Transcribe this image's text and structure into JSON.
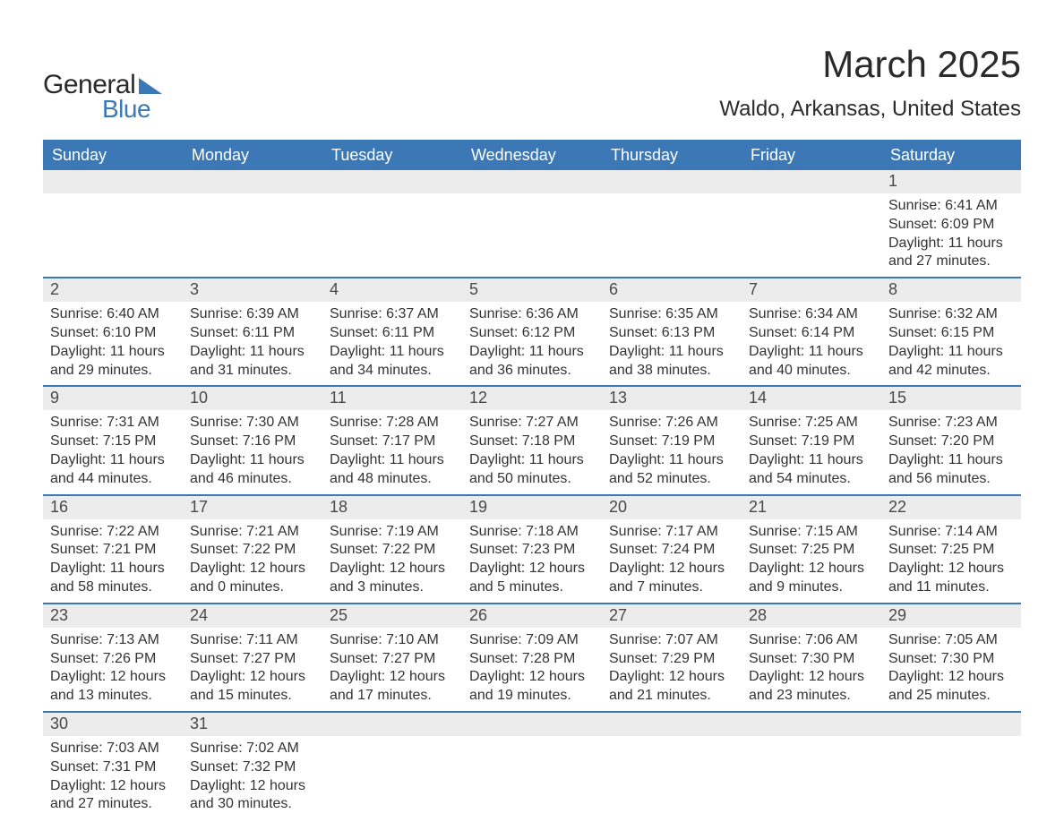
{
  "logo": {
    "text1": "General",
    "text2": "Blue",
    "accent_color": "#3b78b5"
  },
  "title": "March 2025",
  "location": "Waldo, Arkansas, United States",
  "day_headers": [
    "Sunday",
    "Monday",
    "Tuesday",
    "Wednesday",
    "Thursday",
    "Friday",
    "Saturday"
  ],
  "header_bg": "#3b78b5",
  "header_fg": "#ffffff",
  "daynum_bg": "#ececec",
  "row_border": "#3b78b5",
  "text_color": "#333333",
  "body_fontsize": 16,
  "leading_blanks": 6,
  "days": [
    {
      "n": 1,
      "sunrise": "6:41 AM",
      "sunset": "6:09 PM",
      "dl_h": 11,
      "dl_m": 27
    },
    {
      "n": 2,
      "sunrise": "6:40 AM",
      "sunset": "6:10 PM",
      "dl_h": 11,
      "dl_m": 29
    },
    {
      "n": 3,
      "sunrise": "6:39 AM",
      "sunset": "6:11 PM",
      "dl_h": 11,
      "dl_m": 31
    },
    {
      "n": 4,
      "sunrise": "6:37 AM",
      "sunset": "6:11 PM",
      "dl_h": 11,
      "dl_m": 34
    },
    {
      "n": 5,
      "sunrise": "6:36 AM",
      "sunset": "6:12 PM",
      "dl_h": 11,
      "dl_m": 36
    },
    {
      "n": 6,
      "sunrise": "6:35 AM",
      "sunset": "6:13 PM",
      "dl_h": 11,
      "dl_m": 38
    },
    {
      "n": 7,
      "sunrise": "6:34 AM",
      "sunset": "6:14 PM",
      "dl_h": 11,
      "dl_m": 40
    },
    {
      "n": 8,
      "sunrise": "6:32 AM",
      "sunset": "6:15 PM",
      "dl_h": 11,
      "dl_m": 42
    },
    {
      "n": 9,
      "sunrise": "7:31 AM",
      "sunset": "7:15 PM",
      "dl_h": 11,
      "dl_m": 44
    },
    {
      "n": 10,
      "sunrise": "7:30 AM",
      "sunset": "7:16 PM",
      "dl_h": 11,
      "dl_m": 46
    },
    {
      "n": 11,
      "sunrise": "7:28 AM",
      "sunset": "7:17 PM",
      "dl_h": 11,
      "dl_m": 48
    },
    {
      "n": 12,
      "sunrise": "7:27 AM",
      "sunset": "7:18 PM",
      "dl_h": 11,
      "dl_m": 50
    },
    {
      "n": 13,
      "sunrise": "7:26 AM",
      "sunset": "7:19 PM",
      "dl_h": 11,
      "dl_m": 52
    },
    {
      "n": 14,
      "sunrise": "7:25 AM",
      "sunset": "7:19 PM",
      "dl_h": 11,
      "dl_m": 54
    },
    {
      "n": 15,
      "sunrise": "7:23 AM",
      "sunset": "7:20 PM",
      "dl_h": 11,
      "dl_m": 56
    },
    {
      "n": 16,
      "sunrise": "7:22 AM",
      "sunset": "7:21 PM",
      "dl_h": 11,
      "dl_m": 58
    },
    {
      "n": 17,
      "sunrise": "7:21 AM",
      "sunset": "7:22 PM",
      "dl_h": 12,
      "dl_m": 0
    },
    {
      "n": 18,
      "sunrise": "7:19 AM",
      "sunset": "7:22 PM",
      "dl_h": 12,
      "dl_m": 3
    },
    {
      "n": 19,
      "sunrise": "7:18 AM",
      "sunset": "7:23 PM",
      "dl_h": 12,
      "dl_m": 5
    },
    {
      "n": 20,
      "sunrise": "7:17 AM",
      "sunset": "7:24 PM",
      "dl_h": 12,
      "dl_m": 7
    },
    {
      "n": 21,
      "sunrise": "7:15 AM",
      "sunset": "7:25 PM",
      "dl_h": 12,
      "dl_m": 9
    },
    {
      "n": 22,
      "sunrise": "7:14 AM",
      "sunset": "7:25 PM",
      "dl_h": 12,
      "dl_m": 11
    },
    {
      "n": 23,
      "sunrise": "7:13 AM",
      "sunset": "7:26 PM",
      "dl_h": 12,
      "dl_m": 13
    },
    {
      "n": 24,
      "sunrise": "7:11 AM",
      "sunset": "7:27 PM",
      "dl_h": 12,
      "dl_m": 15
    },
    {
      "n": 25,
      "sunrise": "7:10 AM",
      "sunset": "7:27 PM",
      "dl_h": 12,
      "dl_m": 17
    },
    {
      "n": 26,
      "sunrise": "7:09 AM",
      "sunset": "7:28 PM",
      "dl_h": 12,
      "dl_m": 19
    },
    {
      "n": 27,
      "sunrise": "7:07 AM",
      "sunset": "7:29 PM",
      "dl_h": 12,
      "dl_m": 21
    },
    {
      "n": 28,
      "sunrise": "7:06 AM",
      "sunset": "7:30 PM",
      "dl_h": 12,
      "dl_m": 23
    },
    {
      "n": 29,
      "sunrise": "7:05 AM",
      "sunset": "7:30 PM",
      "dl_h": 12,
      "dl_m": 25
    },
    {
      "n": 30,
      "sunrise": "7:03 AM",
      "sunset": "7:31 PM",
      "dl_h": 12,
      "dl_m": 27
    },
    {
      "n": 31,
      "sunrise": "7:02 AM",
      "sunset": "7:32 PM",
      "dl_h": 12,
      "dl_m": 30
    }
  ],
  "labels": {
    "sunrise": "Sunrise: ",
    "sunset": "Sunset: ",
    "daylight_pre": "Daylight: ",
    "daylight_mid": " hours and ",
    "daylight_suf": " minutes."
  }
}
